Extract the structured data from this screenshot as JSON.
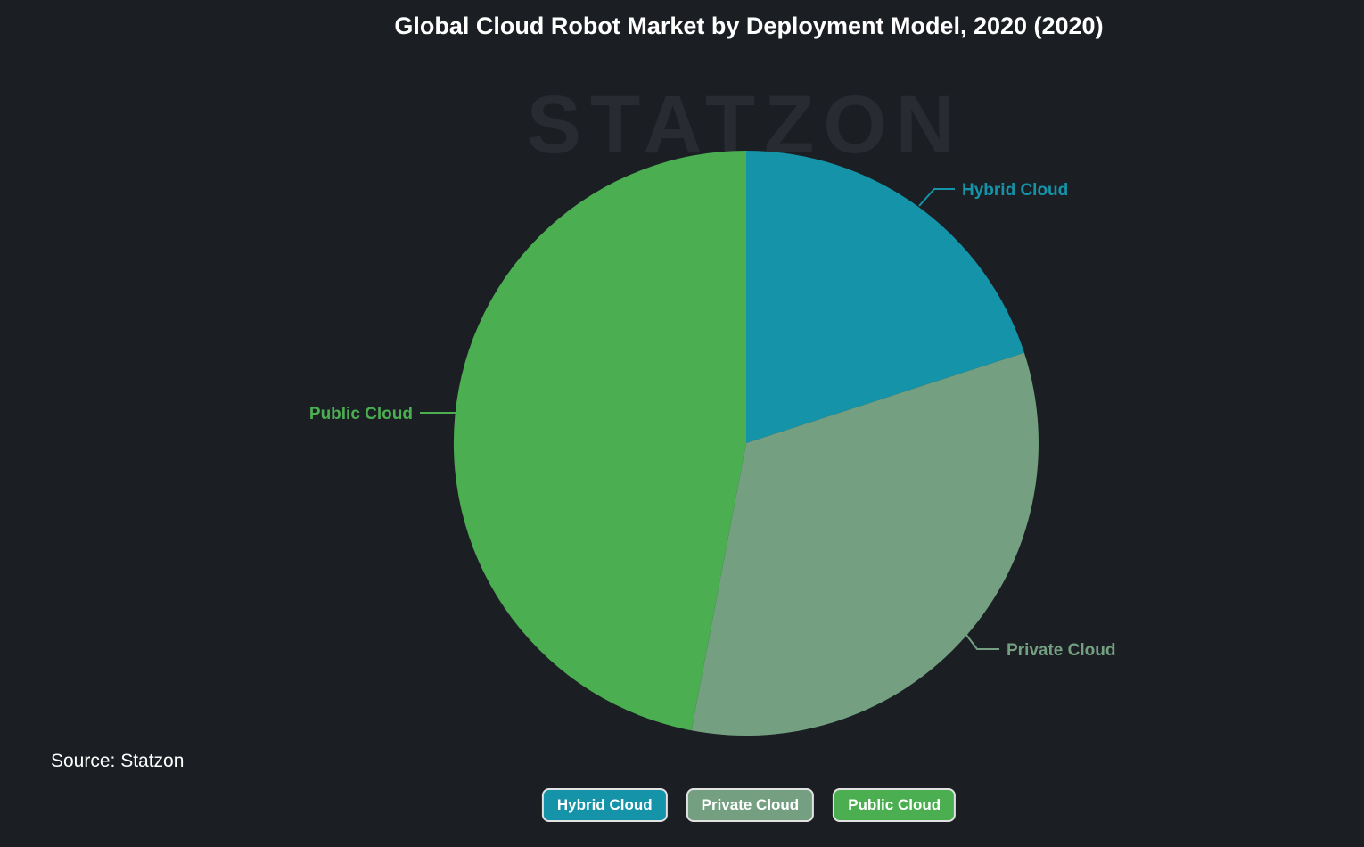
{
  "page": {
    "title": "Global Cloud Robot Market by Deployment Model, 2020 (2020)",
    "watermark": "STATZON",
    "source": "Source: Statzon",
    "background_color": "#1b1f24"
  },
  "chart_data": {
    "type": "pie",
    "title": "Global Cloud Robot Market by Deployment Model, 2020 (2020)",
    "values_are_estimated_from_angles": true,
    "unit": "% share (estimated, no values printed on chart)",
    "start_angle_deg": 0,
    "direction": "clockwise",
    "labels_outside_with_connectors": true,
    "legend_position": "bottom",
    "slices": [
      {
        "label": "Hybrid Cloud",
        "value": 20,
        "color": "#1593A8"
      },
      {
        "label": "Private Cloud",
        "value": 33,
        "color": "#74A081"
      },
      {
        "label": "Public Cloud",
        "value": 47,
        "color": "#4BAE51"
      }
    ]
  },
  "legend": {
    "items": [
      {
        "label": "Hybrid Cloud",
        "color": "#1593A8"
      },
      {
        "label": "Private Cloud",
        "color": "#74A081"
      },
      {
        "label": "Public Cloud",
        "color": "#4BAE51"
      }
    ]
  },
  "geometry_note": "pie center (837,497), radius 328"
}
